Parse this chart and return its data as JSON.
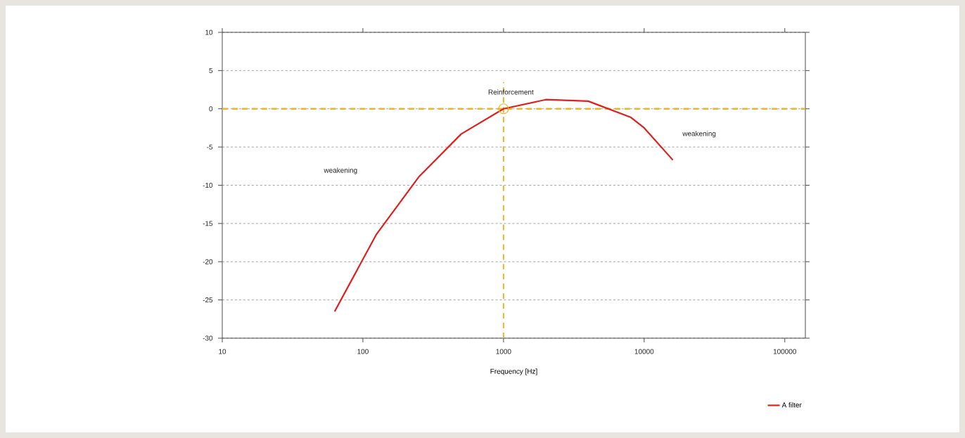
{
  "chart_data": {
    "type": "line",
    "xlabel": "Frequency [Hz]",
    "log": "x",
    "x": [
      63,
      125,
      250,
      500,
      1000,
      2000,
      4000,
      8000,
      10000,
      16000
    ],
    "series": [
      {
        "name": "A filter",
        "color": "#e0201c",
        "values": [
          -26.5,
          -16.4,
          -8.9,
          -3.3,
          0,
          1.2,
          1.0,
          -1.1,
          -2.5,
          -6.7
        ]
      },
      {
        "type": "scatter",
        "color": "#f0b429",
        "marker": "circle",
        "x": [
          1000
        ],
        "values": [
          0
        ]
      }
    ],
    "xlim": [
      10,
      140000
    ],
    "xticks": [
      10,
      100,
      1000,
      10000,
      100000
    ],
    "ylim": [
      -30,
      10
    ],
    "yticks": [
      -30,
      -25,
      -20,
      -15,
      -10,
      -5,
      0,
      5,
      10
    ],
    "grid": "y",
    "legend": "bottom right",
    "line_style": "solid",
    "ref_lines": [
      {
        "axis": "y",
        "value": 0,
        "color": "#f0b429",
        "line_style": "dashed"
      },
      {
        "axis": "x",
        "value": 1000,
        "color": "#f0b429",
        "line_style": "dashed"
      }
    ],
    "annotations": [
      "Reinforcement",
      "weakening",
      "weakening"
    ]
  }
}
